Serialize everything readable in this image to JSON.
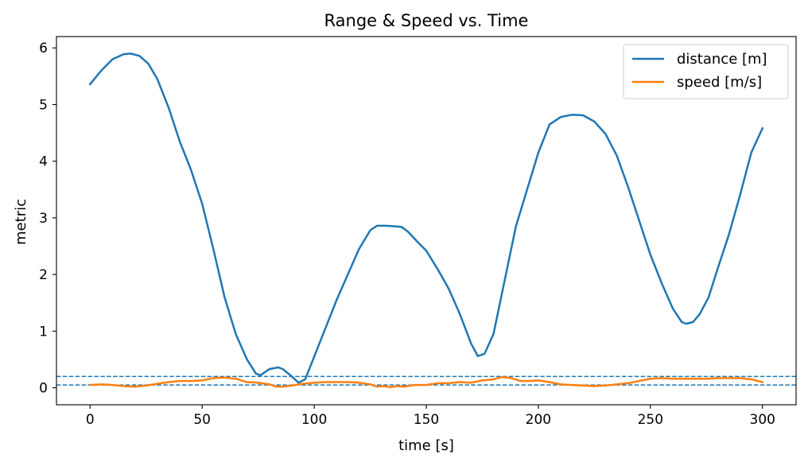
{
  "chart_data": {
    "type": "line",
    "title": "Range & Speed vs. Time",
    "xlabel": "time [s]",
    "ylabel": "metric",
    "xlim": [
      -15,
      315
    ],
    "ylim": [
      -0.3,
      6.2
    ],
    "xticks": [
      0,
      50,
      100,
      150,
      200,
      250,
      300
    ],
    "yticks": [
      0,
      1,
      2,
      3,
      4,
      5,
      6
    ],
    "grid": false,
    "legend_position": "top-right",
    "series": [
      {
        "name": "distance [m]",
        "color": "#1f77b4",
        "x": [
          0,
          5,
          10,
          15,
          18,
          22,
          26,
          30,
          35,
          40,
          45,
          50,
          55,
          60,
          65,
          70,
          74,
          76,
          80,
          84,
          86,
          90,
          93,
          96,
          100,
          105,
          110,
          115,
          120,
          125,
          128,
          132,
          136,
          139,
          142,
          146,
          150,
          155,
          160,
          165,
          170,
          173,
          176,
          180,
          185,
          190,
          195,
          200,
          205,
          210,
          215,
          220,
          225,
          230,
          235,
          240,
          245,
          250,
          255,
          260,
          264,
          266,
          269,
          272,
          276,
          280,
          285,
          290,
          295,
          300
        ],
        "y": [
          5.36,
          5.6,
          5.8,
          5.89,
          5.9,
          5.86,
          5.72,
          5.45,
          4.95,
          4.35,
          3.85,
          3.25,
          2.45,
          1.6,
          0.95,
          0.5,
          0.25,
          0.22,
          0.33,
          0.36,
          0.33,
          0.2,
          0.09,
          0.15,
          0.55,
          1.05,
          1.55,
          2.0,
          2.45,
          2.78,
          2.86,
          2.86,
          2.85,
          2.84,
          2.75,
          2.58,
          2.42,
          2.1,
          1.75,
          1.3,
          0.78,
          0.56,
          0.6,
          0.95,
          1.9,
          2.85,
          3.5,
          4.15,
          4.65,
          4.78,
          4.82,
          4.81,
          4.7,
          4.48,
          4.1,
          3.55,
          2.95,
          2.35,
          1.85,
          1.4,
          1.16,
          1.13,
          1.16,
          1.3,
          1.6,
          2.1,
          2.7,
          3.4,
          4.15,
          4.58
        ]
      },
      {
        "name": "speed [m/s]",
        "color": "#ff7f0e",
        "x": [
          0,
          5,
          10,
          15,
          20,
          25,
          30,
          35,
          40,
          45,
          50,
          55,
          60,
          65,
          70,
          75,
          80,
          83,
          86,
          90,
          95,
          100,
          105,
          110,
          115,
          120,
          125,
          128,
          131,
          134,
          137,
          140,
          145,
          150,
          155,
          160,
          165,
          170,
          175,
          180,
          184,
          188,
          192,
          196,
          200,
          205,
          210,
          215,
          220,
          225,
          230,
          235,
          240,
          245,
          250,
          255,
          260,
          265,
          270,
          275,
          280,
          285,
          290,
          295,
          300
        ],
        "y": [
          0.05,
          0.06,
          0.05,
          0.03,
          0.02,
          0.04,
          0.07,
          0.1,
          0.12,
          0.12,
          0.13,
          0.17,
          0.18,
          0.16,
          0.1,
          0.09,
          0.06,
          0.02,
          0.02,
          0.04,
          0.07,
          0.09,
          0.1,
          0.1,
          0.1,
          0.09,
          0.06,
          0.02,
          0.03,
          0.01,
          0.03,
          0.02,
          0.05,
          0.05,
          0.08,
          0.08,
          0.1,
          0.09,
          0.13,
          0.15,
          0.19,
          0.17,
          0.12,
          0.12,
          0.13,
          0.1,
          0.06,
          0.05,
          0.04,
          0.03,
          0.04,
          0.06,
          0.08,
          0.12,
          0.16,
          0.17,
          0.16,
          0.16,
          0.16,
          0.16,
          0.17,
          0.17,
          0.17,
          0.15,
          0.1
        ]
      }
    ],
    "reference_lines": [
      {
        "y": 0.2,
        "style": "dashed",
        "color": "#1f77b4"
      },
      {
        "y": 0.05,
        "style": "dashed",
        "color": "#1f77b4"
      }
    ]
  }
}
